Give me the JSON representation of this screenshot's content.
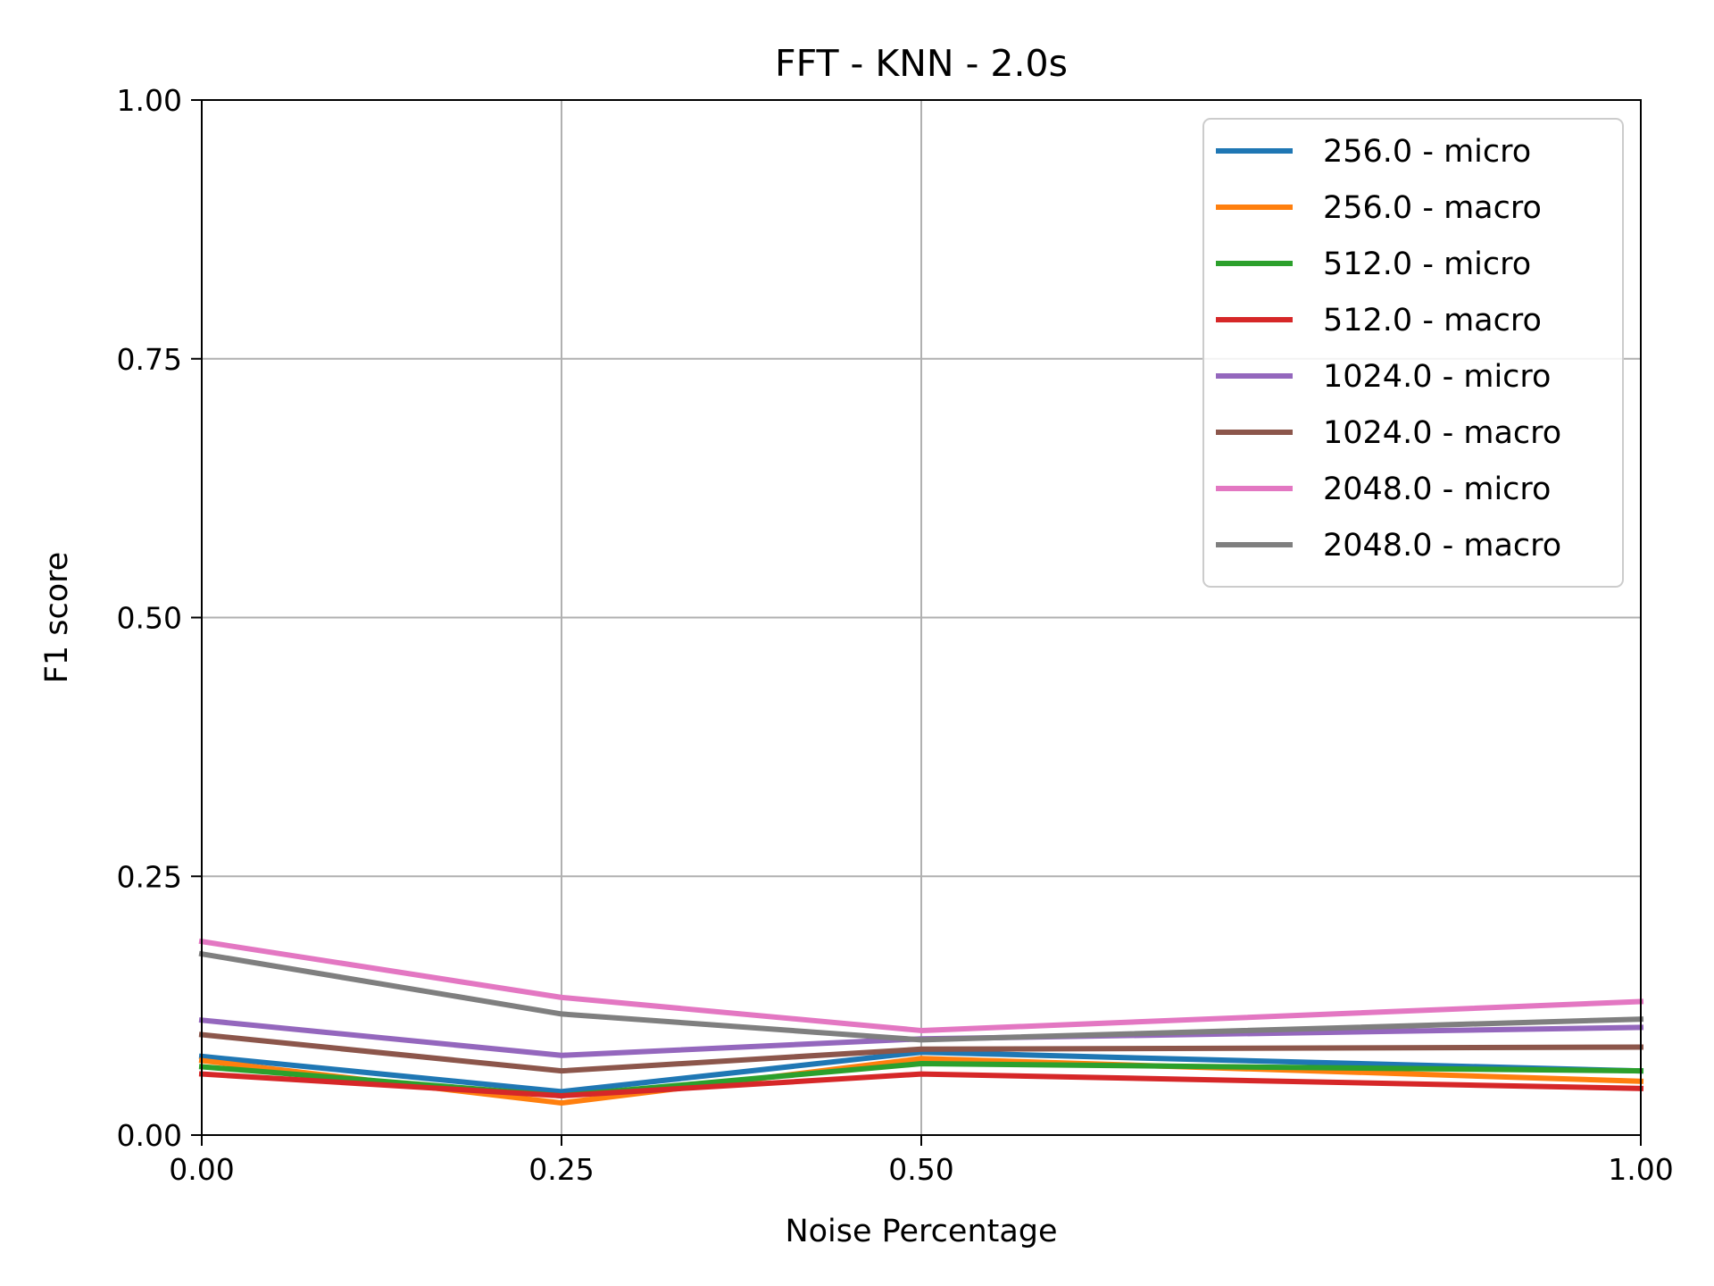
{
  "chart_data": {
    "type": "line",
    "title": "FFT - KNN - 2.0s",
    "xlabel": "Noise Percentage",
    "ylabel": "F1 score",
    "x": [
      0.0,
      0.25,
      0.5,
      1.0
    ],
    "xlim": [
      0,
      1
    ],
    "ylim": [
      0,
      1
    ],
    "x_ticks": [
      "0.00",
      "0.25",
      "0.50",
      "1.00"
    ],
    "x_tick_values": [
      0.0,
      0.25,
      0.5,
      1.0
    ],
    "y_ticks": [
      "0.00",
      "0.25",
      "0.50",
      "0.75",
      "1.00"
    ],
    "y_tick_values": [
      0.0,
      0.25,
      0.5,
      0.75,
      1.0
    ],
    "grid": true,
    "legend_position": "top-right",
    "series": [
      {
        "name": "256.0 - micro",
        "color": "#1f77b4",
        "values": [
          0.076,
          0.042,
          0.08,
          0.062
        ]
      },
      {
        "name": "256.0 - macro",
        "color": "#ff7f0e",
        "values": [
          0.072,
          0.031,
          0.074,
          0.052
        ]
      },
      {
        "name": "512.0 - micro",
        "color": "#2ca02c",
        "values": [
          0.066,
          0.038,
          0.069,
          0.062
        ]
      },
      {
        "name": "512.0 - macro",
        "color": "#d62728",
        "values": [
          0.059,
          0.038,
          0.059,
          0.045
        ]
      },
      {
        "name": "1024.0 - micro",
        "color": "#9467bd",
        "values": [
          0.111,
          0.077,
          0.093,
          0.104
        ]
      },
      {
        "name": "1024.0 - macro",
        "color": "#8c564b",
        "values": [
          0.097,
          0.062,
          0.083,
          0.085
        ]
      },
      {
        "name": "2048.0 - micro",
        "color": "#e377c2",
        "values": [
          0.187,
          0.133,
          0.101,
          0.129
        ]
      },
      {
        "name": "2048.0 - macro",
        "color": "#7f7f7f",
        "values": [
          0.175,
          0.117,
          0.092,
          0.112
        ]
      }
    ]
  }
}
